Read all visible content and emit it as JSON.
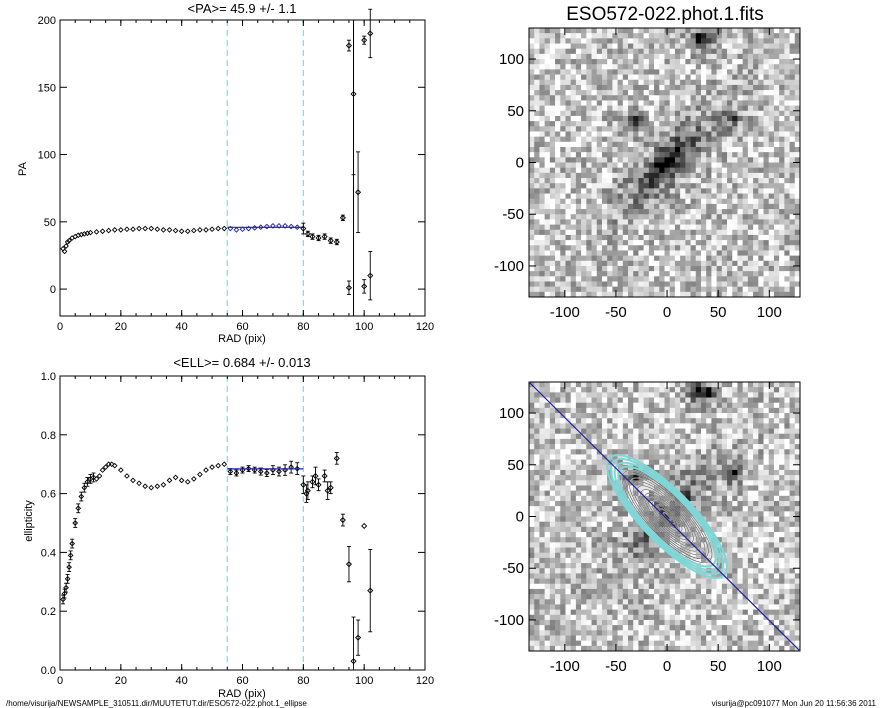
{
  "footer": {
    "left": "/home/visurija/NEWSAMPLE_310511.dir/MUUTETUT.dir/ESO572-022.phot.1_ellipse",
    "right": "visurija@pc091077  Mon Jun 20 11:56:36 2011"
  },
  "colors": {
    "fit_region": "#6fe3f0",
    "fit_points": "#2020a0",
    "contours": "#7fd6d6"
  },
  "chart_data": [
    {
      "type": "scatter",
      "title": "<PA>=  45.9 +/-   1.1",
      "xlabel": "RAD (pix)",
      "ylabel": "PA",
      "xlim": [
        0,
        120
      ],
      "ylim": [
        -20,
        200
      ],
      "xticks": [
        0,
        20,
        40,
        60,
        80,
        100,
        120
      ],
      "yticks": [
        0,
        50,
        100,
        150,
        200
      ],
      "fit_range": [
        55,
        80
      ],
      "fit_value": 45.9,
      "profile": {
        "x": [
          1,
          1.5,
          2,
          2.5,
          3,
          4,
          5,
          6,
          7,
          8,
          9,
          10,
          12,
          14,
          16,
          18,
          20,
          22,
          24,
          26,
          28,
          30,
          32,
          34,
          36,
          38,
          40,
          42,
          44,
          46,
          48,
          50,
          52,
          54
        ],
        "y": [
          30,
          28,
          32,
          35,
          36,
          38,
          39,
          40,
          40.5,
          41,
          41.5,
          42,
          42.5,
          43,
          43.5,
          44,
          44,
          44.5,
          44.5,
          45,
          45,
          45,
          44.5,
          44,
          44,
          43.5,
          43,
          43,
          43.5,
          44,
          44,
          44.5,
          45,
          45
        ]
      },
      "fit_points": {
        "x": [
          56,
          58,
          60,
          62,
          64,
          66,
          68,
          70,
          72,
          74,
          76,
          78
        ],
        "y": [
          45,
          44,
          44.5,
          45,
          45.5,
          46,
          46.5,
          47,
          47,
          47,
          46.5,
          46
        ]
      },
      "outer_points": {
        "x": [
          80,
          81.5,
          83,
          85,
          87,
          89,
          91,
          93,
          95,
          96.5,
          98,
          100,
          102
        ],
        "y": [
          45,
          41,
          39,
          38,
          39,
          36,
          35,
          53,
          1,
          145,
          72,
          2,
          10
        ],
        "err": [
          4,
          2,
          2,
          2,
          2,
          2,
          2,
          2,
          5,
          60,
          30,
          5,
          18
        ]
      },
      "top_points": {
        "x": [
          95,
          100,
          102
        ],
        "y": [
          181,
          185,
          190
        ],
        "err": [
          4,
          3,
          18
        ]
      },
      "vertical_line_x": 96.5
    },
    {
      "type": "scatter",
      "title": "<ELL>= 0.684 +/-  0.013",
      "xlabel": "RAD (pix)",
      "ylabel": "ellipticity",
      "xlim": [
        0,
        120
      ],
      "ylim": [
        0,
        1
      ],
      "xticks": [
        0,
        20,
        40,
        60,
        80,
        100,
        120
      ],
      "yticks": [
        0.0,
        0.2,
        0.4,
        0.6,
        0.8,
        1.0
      ],
      "fit_range": [
        55,
        80
      ],
      "fit_value": 0.684,
      "profile": {
        "x": [
          1,
          1.5,
          2,
          2.5,
          3,
          3.5,
          4,
          5,
          6,
          7,
          8,
          9,
          10,
          11,
          12,
          13,
          14,
          15,
          16,
          17,
          18,
          20,
          22,
          24,
          26,
          28,
          30,
          32,
          34,
          36,
          38,
          40,
          42,
          44,
          46,
          48,
          50,
          52,
          54
        ],
        "y": [
          0.24,
          0.26,
          0.28,
          0.31,
          0.35,
          0.39,
          0.43,
          0.5,
          0.55,
          0.59,
          0.62,
          0.64,
          0.65,
          0.655,
          0.65,
          0.66,
          0.68,
          0.69,
          0.7,
          0.7,
          0.695,
          0.68,
          0.66,
          0.645,
          0.635,
          0.625,
          0.62,
          0.625,
          0.63,
          0.645,
          0.655,
          0.645,
          0.64,
          0.65,
          0.665,
          0.68,
          0.69,
          0.695,
          0.7
        ]
      },
      "fit_points": {
        "x": [
          56,
          58,
          60,
          62,
          64,
          66,
          68,
          70,
          72,
          74,
          76,
          78
        ],
        "y": [
          0.675,
          0.67,
          0.68,
          0.685,
          0.68,
          0.675,
          0.67,
          0.68,
          0.675,
          0.68,
          0.69,
          0.685
        ],
        "err": [
          0.01,
          0.01,
          0.01,
          0.01,
          0.01,
          0.012,
          0.012,
          0.015,
          0.015,
          0.018,
          0.02,
          0.02
        ]
      },
      "outer_points": {
        "x": [
          80,
          81.5,
          83,
          85,
          87,
          89,
          91,
          93,
          95,
          96.5,
          98,
          100,
          102
        ],
        "y": [
          0.63,
          0.61,
          0.64,
          0.63,
          0.66,
          0.62,
          0.72,
          0.51,
          0.36,
          0.03,
          0.11,
          0.49,
          0.27
        ],
        "err": [
          0.03,
          0.03,
          0.02,
          0.02,
          0.02,
          0.02,
          0.02,
          0.02,
          0.06,
          0.15,
          0.06,
          0.0,
          0.14
        ]
      },
      "outer_points_mid": {
        "x": [
          81,
          84,
          88
        ],
        "y": [
          0.6,
          0.66,
          0.61
        ],
        "err": [
          0.03,
          0.03,
          0.03
        ]
      }
    },
    {
      "type": "heatmap",
      "title": "ESO572-022.phot.1.fits",
      "xlim": [
        -135,
        130
      ],
      "ylim": [
        -130,
        130
      ],
      "xticks": [
        -100,
        -50,
        0,
        50,
        100
      ],
      "yticks": [
        -100,
        -50,
        0,
        50,
        100
      ],
      "galaxy": {
        "center": [
          0,
          0
        ],
        "pa_deg": 45.9,
        "semi_major": 70,
        "ellipticity": 0.684
      },
      "bright_sources": [
        [
          -30,
          40
        ],
        [
          65,
          42
        ],
        [
          30,
          120
        ],
        [
          40,
          120
        ]
      ]
    },
    {
      "type": "heatmap",
      "xlim": [
        -135,
        130
      ],
      "ylim": [
        -130,
        130
      ],
      "xticks": [
        -100,
        -50,
        0,
        50,
        100
      ],
      "yticks": [
        -100,
        -50,
        0,
        50,
        100
      ],
      "contours": {
        "center": [
          0,
          0
        ],
        "pa_deg": 45.9,
        "ellipticity": 0.684,
        "semi_major_max": 80,
        "count": 16
      },
      "axis_line": {
        "from": [
          -135,
          130
        ],
        "to": [
          130,
          -130
        ]
      }
    }
  ]
}
